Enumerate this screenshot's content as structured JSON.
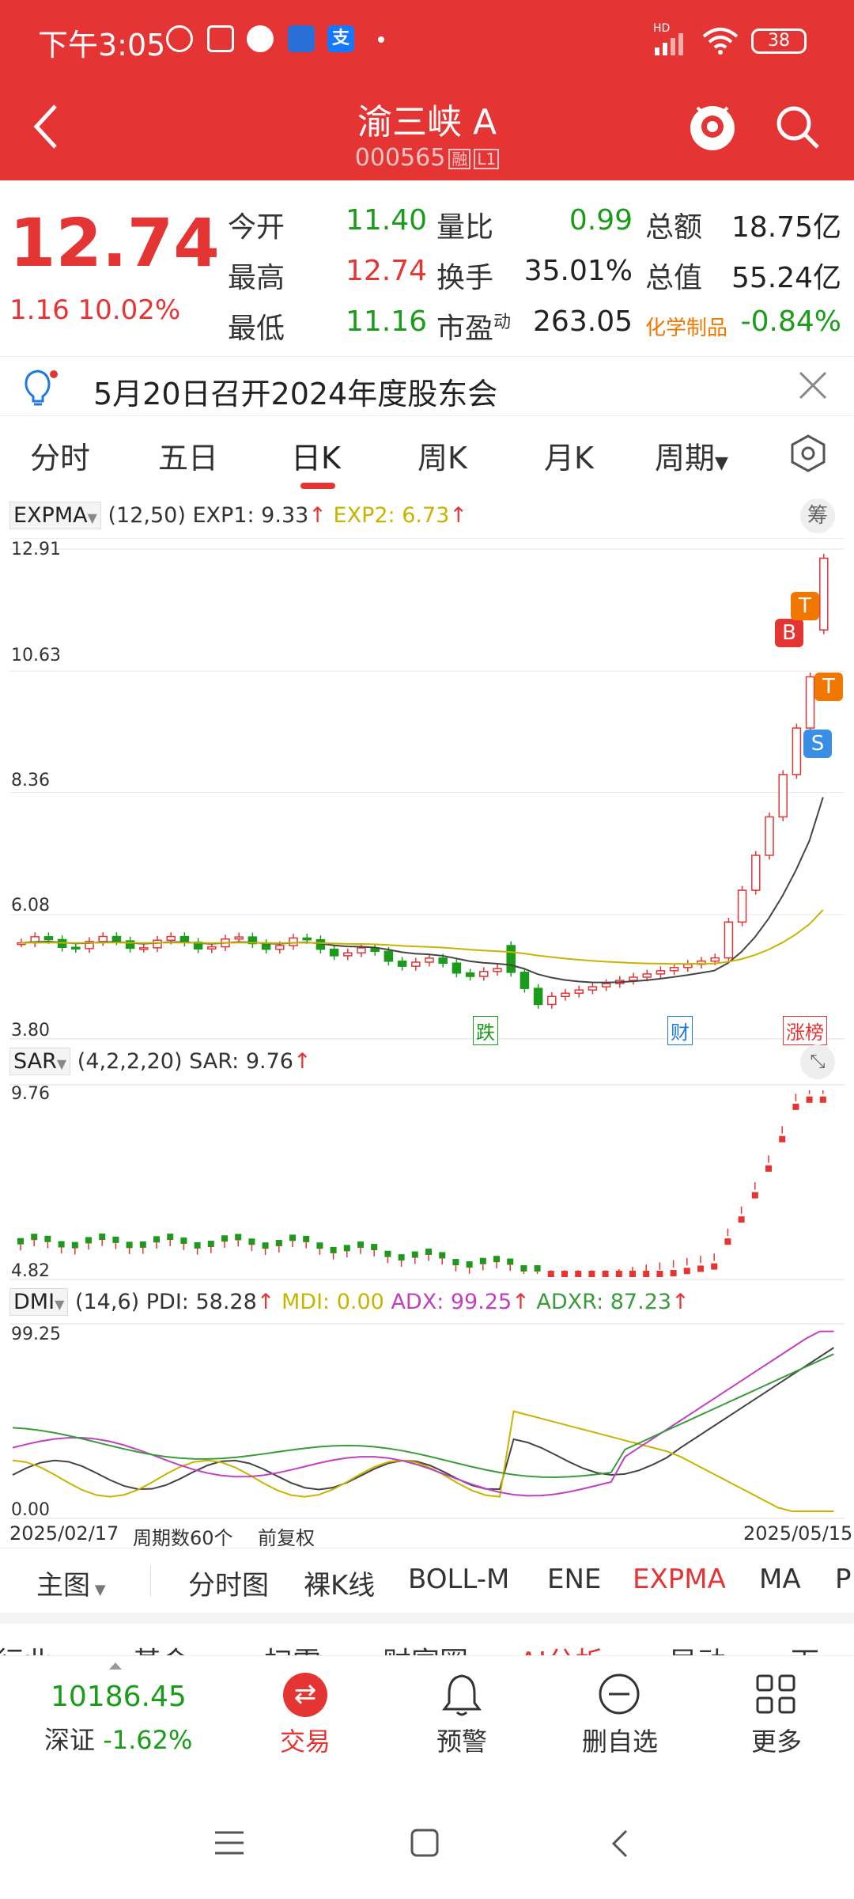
{
  "status_bar": {
    "time": "下午3:05",
    "battery": "38",
    "network": "HD"
  },
  "header": {
    "stock_name": "渝三峡 A",
    "stock_code": "000565",
    "tags": [
      "融",
      "L1"
    ]
  },
  "quote": {
    "price": "12.74",
    "change": "1.16",
    "change_pct": "10.02%",
    "fields": [
      {
        "label": "今开",
        "value": "11.40",
        "color": "green"
      },
      {
        "label": "量比",
        "value": "0.99",
        "color": "green"
      },
      {
        "label": "总额",
        "value": "18.75亿",
        "color": "dark"
      },
      {
        "label": "最高",
        "value": "12.74",
        "color": "red"
      },
      {
        "label": "换手",
        "value": "35.01%",
        "color": "dark"
      },
      {
        "label": "总值",
        "value": "55.24亿",
        "color": "dark"
      },
      {
        "label": "最低",
        "value": "11.16",
        "color": "green"
      },
      {
        "label": "市盈",
        "label_sup": "动",
        "value": "263.05",
        "color": "dark"
      },
      {
        "label": "化学制品",
        "value": "-0.84%",
        "color": "green"
      }
    ]
  },
  "notice": {
    "text": "5月20日召开2024年度股东会"
  },
  "period_tabs": [
    "分时",
    "五日",
    "日K",
    "周K",
    "月K",
    "周期"
  ],
  "active_tab": "日K",
  "expma": {
    "name": "EXPMA",
    "params": "(12,50)",
    "exp1_label": "EXP1: 9.33",
    "exp2_label": "EXP2: 6.73",
    "chou_label": "筹",
    "y_ticks": [
      "12.91",
      "10.63",
      "8.36",
      "6.08",
      "3.80"
    ],
    "events": [
      "跌",
      "财",
      "涨榜"
    ],
    "markers": [
      "B",
      "T",
      "T",
      "S"
    ]
  },
  "sar": {
    "name": "SAR",
    "params": "(4,2,2,20)",
    "value_label": "SAR: 9.76",
    "y_ticks": [
      "9.76",
      "4.82"
    ]
  },
  "dmi": {
    "name": "DMI",
    "params": "(14,6)",
    "pdi": "PDI: 58.28",
    "mdi": "MDI: 0.00",
    "adx": "ADX: 99.25",
    "adxr": "ADXR: 87.23",
    "y_ticks": [
      "99.25",
      "0.00"
    ]
  },
  "x_axis": {
    "start": "2025/02/17",
    "count": "周期数60个",
    "adjust": "前复权",
    "end": "2025/05/15"
  },
  "chart_tabs": {
    "main": "主图",
    "items": [
      "分时图",
      "裸K线",
      "BOLL-M",
      "ENE",
      "EXPMA",
      "MA",
      "P"
    ],
    "active": "EXPMA"
  },
  "cut_row": [
    "行业",
    "基金",
    "扫雷",
    "财富圈",
    "AI分析",
    "异动",
    "下"
  ],
  "bottom_nav": {
    "index_value": "10186.45",
    "index_name": "深证",
    "index_change": "-1.62%",
    "items": [
      "交易",
      "预警",
      "删自选",
      "更多"
    ]
  },
  "colors": {
    "header_red": "#e53434",
    "up_red": "#e53434",
    "down_green": "#1a9b1a",
    "exp1": "#444444",
    "exp2": "#c8b400",
    "mdi": "#c8b400",
    "adx": "#c040c0",
    "adxr": "#3a9b3a"
  }
}
